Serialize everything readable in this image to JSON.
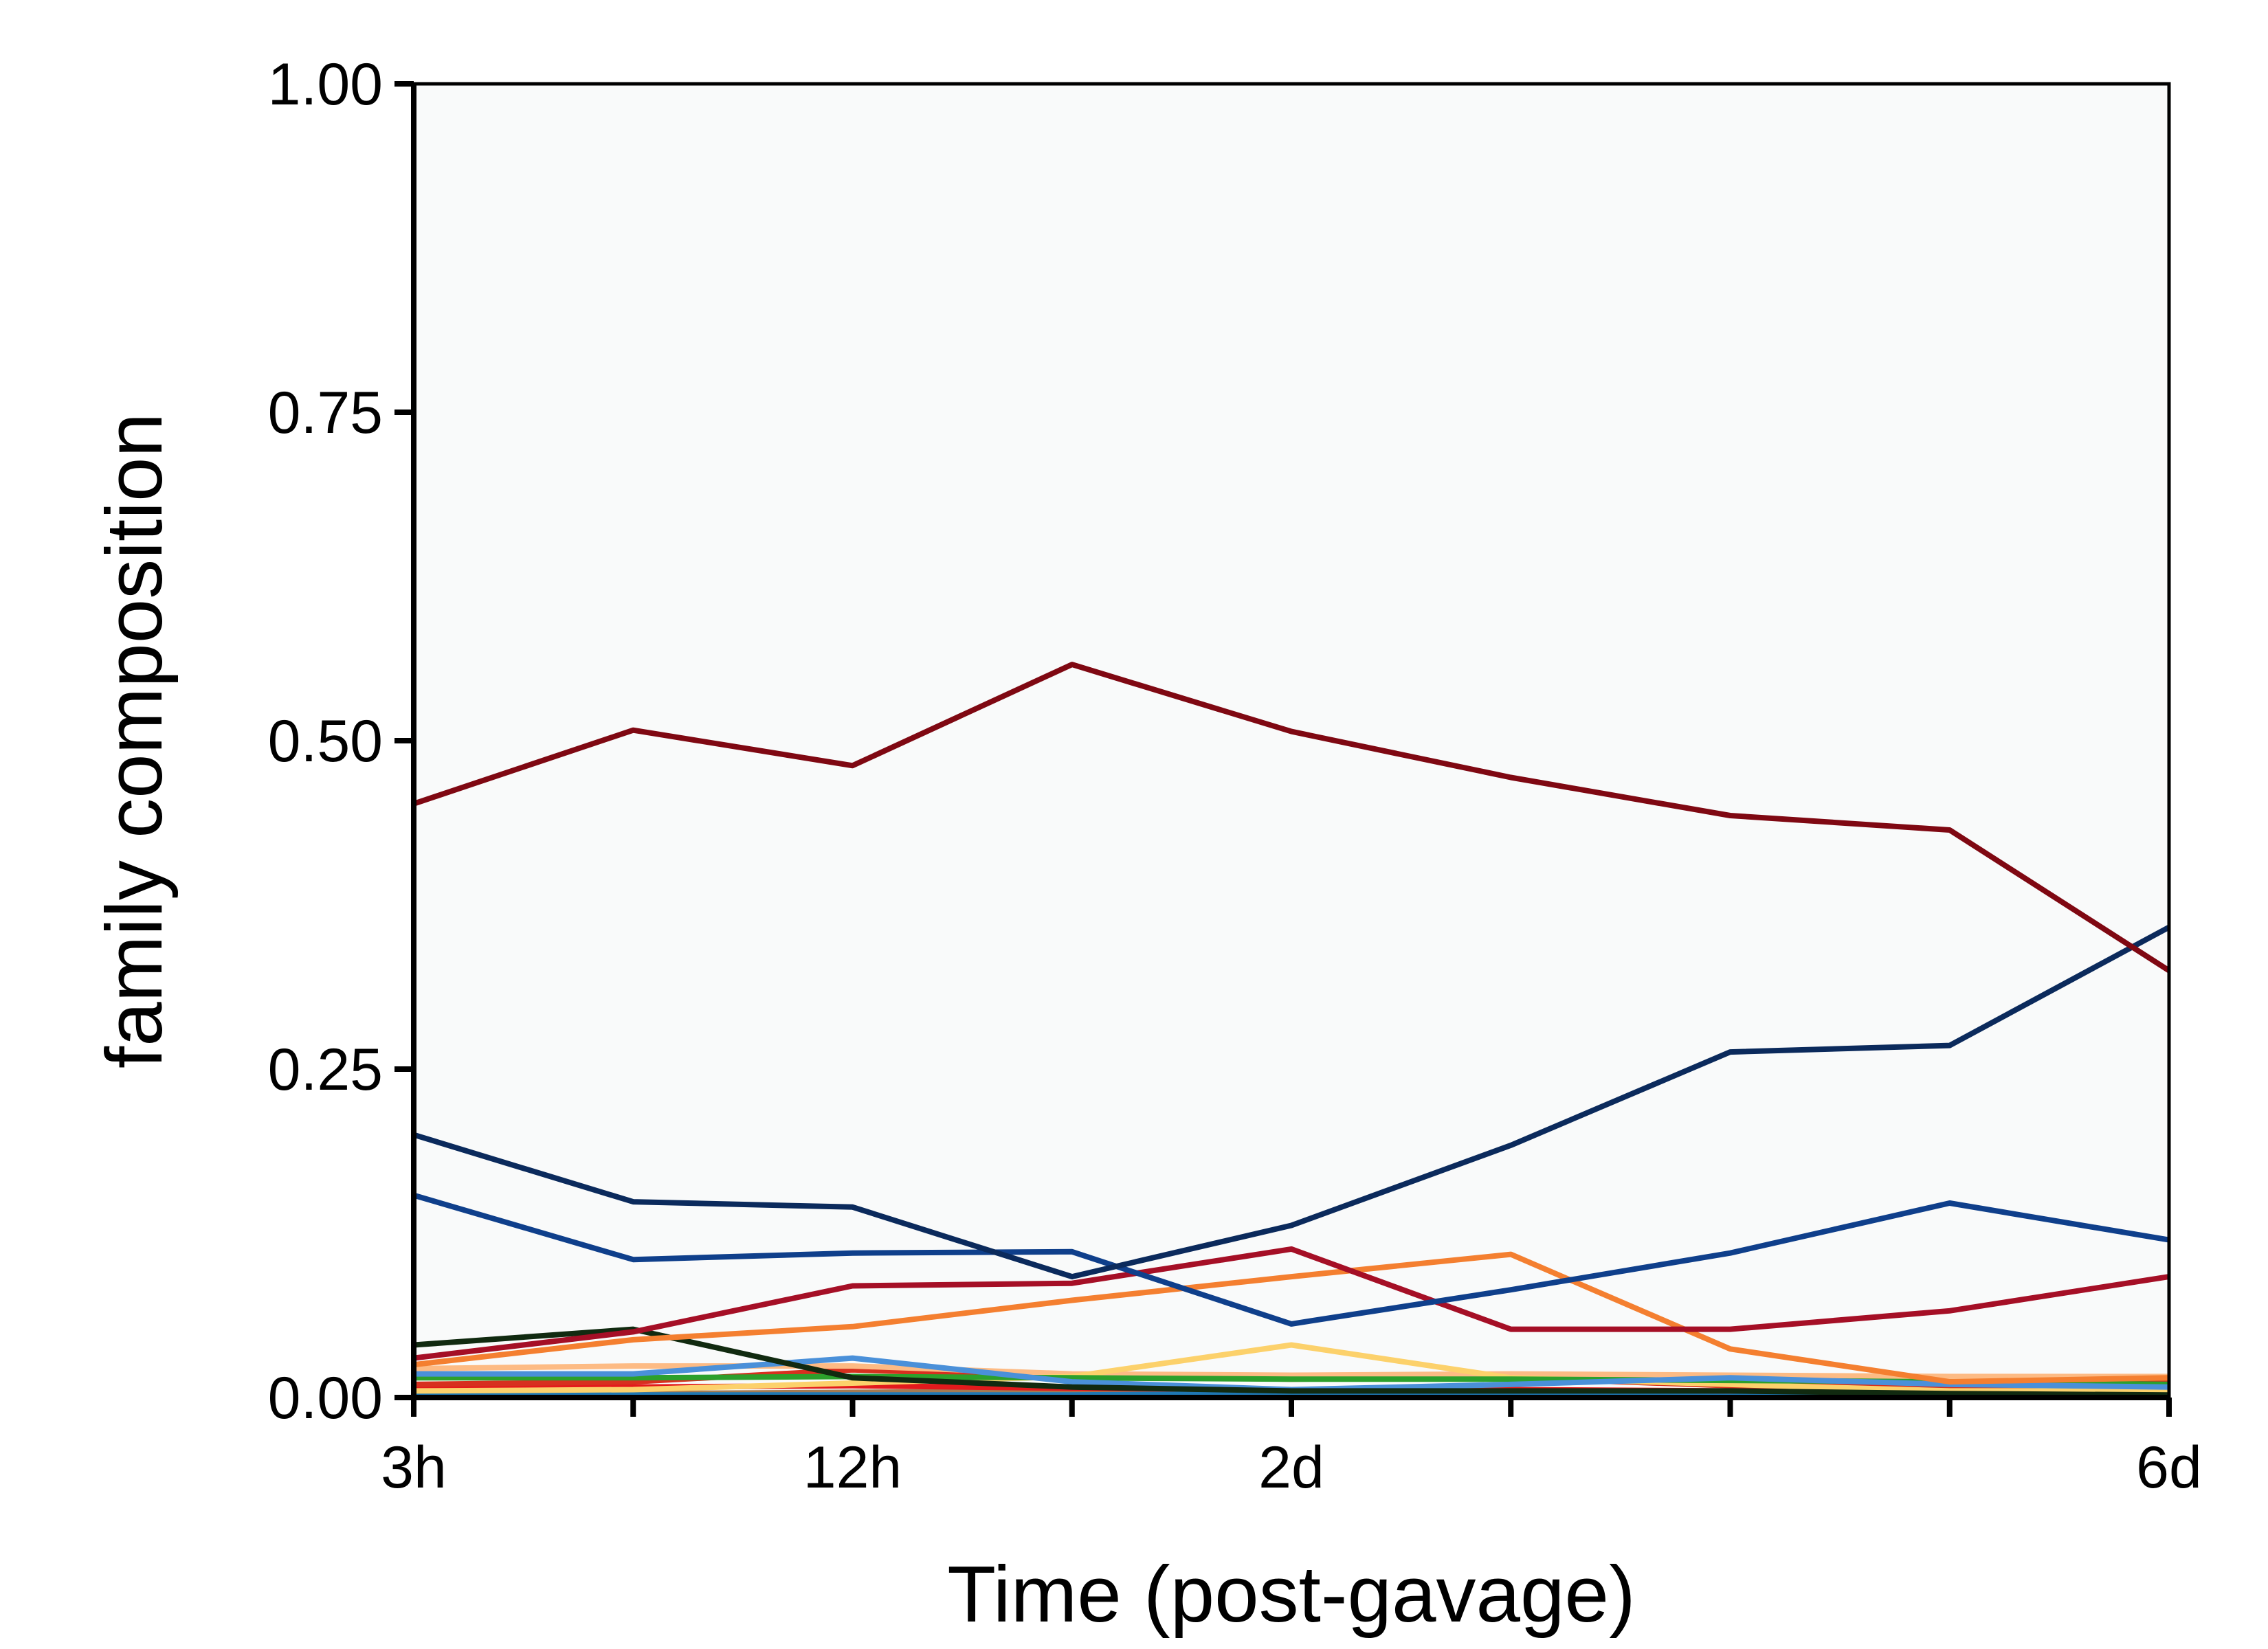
{
  "chart_data": {
    "type": "line",
    "title": "",
    "xlabel": "Time (post-gavage)",
    "ylabel": "family composition",
    "x": [
      0,
      1,
      2,
      3,
      4,
      5,
      6,
      7,
      8
    ],
    "xlim": [
      0,
      8
    ],
    "ylim": [
      0,
      1
    ],
    "x_ticks": [
      0,
      1,
      2,
      3,
      4,
      5,
      6,
      7,
      8
    ],
    "x_tick_labels": [
      "3h",
      "",
      "12h",
      "",
      "2d",
      "",
      "",
      "",
      "6d"
    ],
    "y_ticks": [
      0,
      0.25,
      0.5,
      0.75,
      1
    ],
    "y_tick_labels": [
      "0.00",
      "0.25",
      "0.50",
      "0.75",
      "1.00"
    ],
    "grid": false,
    "legend": "none",
    "plot_background": "#f9fafa",
    "series": [
      {
        "color": "#7f0812",
        "values": [
          0.452,
          0.508,
          0.481,
          0.558,
          0.507,
          0.472,
          0.443,
          0.432,
          0.325
        ]
      },
      {
        "color": "#0b2a5c",
        "values": [
          0.2,
          0.149,
          0.145,
          0.092,
          0.131,
          0.192,
          0.263,
          0.268,
          0.358
        ]
      },
      {
        "color": "#0f3f8b",
        "values": [
          0.154,
          0.105,
          0.11,
          0.111,
          0.056,
          0.082,
          0.11,
          0.148,
          0.12
        ]
      },
      {
        "color": "#a50f26",
        "values": [
          0.03,
          0.05,
          0.085,
          0.087,
          0.113,
          0.052,
          0.052,
          0.066,
          0.092
        ]
      },
      {
        "color": "#f47f30",
        "values": [
          0.025,
          0.044,
          0.054,
          0.074,
          0.092,
          0.109,
          0.037,
          0.012,
          0.015
        ]
      },
      {
        "color": "#112a10",
        "values": [
          0.04,
          0.052,
          0.015,
          0.008,
          0.005,
          0.005,
          0.005,
          0.003,
          0.002
        ]
      },
      {
        "color": "#4a90d9",
        "values": [
          0.018,
          0.018,
          0.03,
          0.012,
          0.006,
          0.01,
          0.015,
          0.01,
          0.008
        ]
      },
      {
        "color": "#2ca02c",
        "values": [
          0.015,
          0.015,
          0.016,
          0.015,
          0.014,
          0.014,
          0.013,
          0.012,
          0.01
        ]
      },
      {
        "color": "#fcd16b",
        "values": [
          0.005,
          0.006,
          0.011,
          0.016,
          0.04,
          0.015,
          0.01,
          0.005,
          0.005
        ]
      },
      {
        "color": "#fdbb84",
        "values": [
          0.022,
          0.024,
          0.024,
          0.018,
          0.017,
          0.018,
          0.017,
          0.016,
          0.016
        ]
      },
      {
        "color": "#d7301f",
        "values": [
          0.01,
          0.012,
          0.021,
          0.016,
          0.014,
          0.015,
          0.009,
          0.008,
          0.011
        ]
      },
      {
        "color": "#e31a1c",
        "values": [
          0.007,
          0.008,
          0.009,
          0.007,
          0.006,
          0.006,
          0.005,
          0.004,
          0.004
        ]
      },
      {
        "color": "#1f78b4",
        "values": [
          0.002,
          0.002,
          0.002,
          0.002,
          0.003,
          0.004,
          0.004,
          0.002,
          0.002
        ]
      },
      {
        "color": "#a67c52",
        "values": [
          0.003,
          0.003,
          0.004,
          0.005,
          0.005,
          0.004,
          0.003,
          0.003,
          0.003
        ]
      },
      {
        "color": "#ffe082",
        "values": [
          0.001,
          0.001,
          0.001,
          0.001,
          0.002,
          0.002,
          0.001,
          0.001,
          0.001
        ]
      }
    ]
  }
}
